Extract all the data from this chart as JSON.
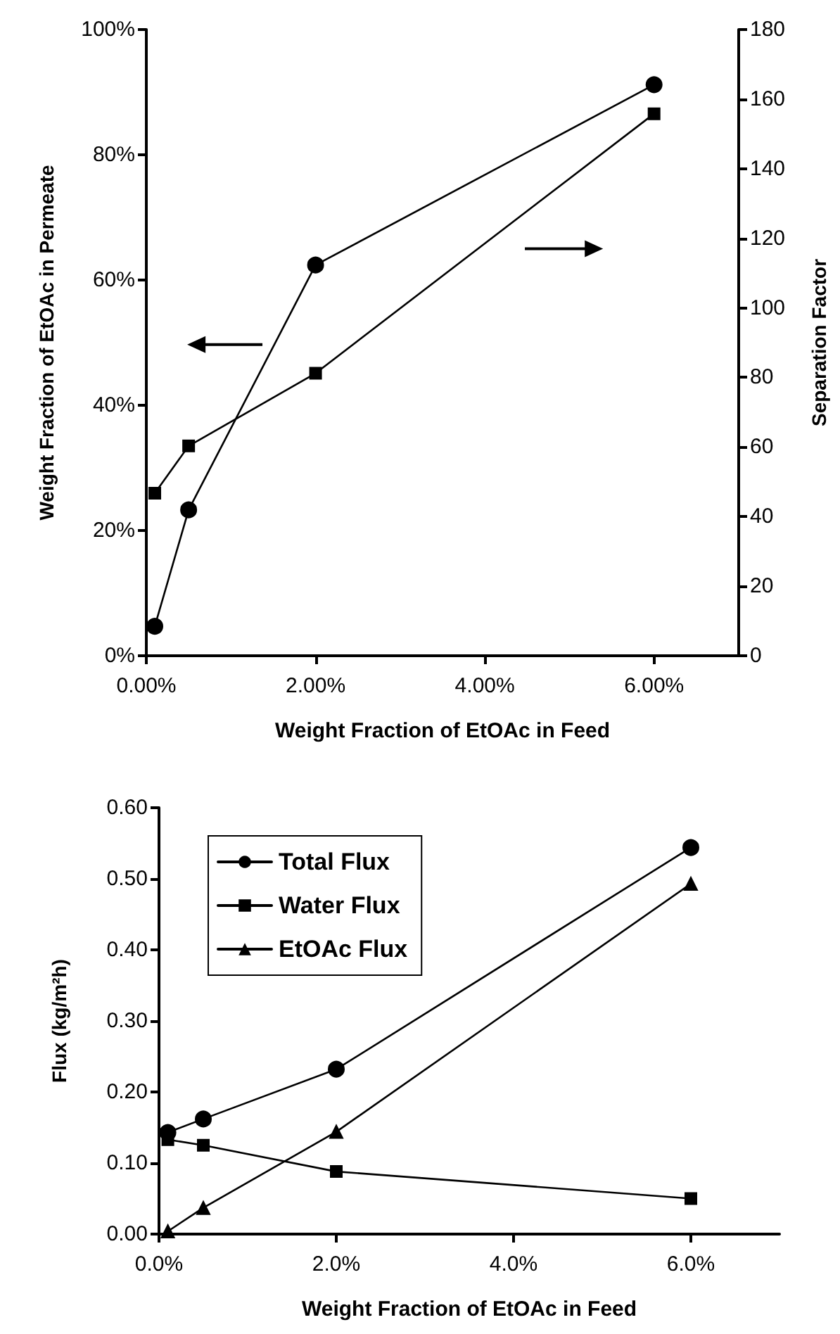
{
  "chart_data": [
    {
      "type": "line",
      "xlabel": "Weight Fraction of EtOAc in Feed",
      "ylabel": "Weight Fraction of EtOAc in Permeate",
      "y2label": "Separation Factor",
      "xlim": [
        0,
        7
      ],
      "xticks": [
        {
          "value": 0,
          "label": "0.00%"
        },
        {
          "value": 2,
          "label": "2.00%"
        },
        {
          "value": 4,
          "label": "4.00%"
        },
        {
          "value": 6,
          "label": "6.00%"
        }
      ],
      "ylim": [
        0,
        100
      ],
      "yticks": [
        {
          "value": 0,
          "label": "0%"
        },
        {
          "value": 20,
          "label": "20%"
        },
        {
          "value": 40,
          "label": "40%"
        },
        {
          "value": 60,
          "label": "60%"
        },
        {
          "value": 80,
          "label": "80%"
        },
        {
          "value": 100,
          "label": "100%"
        }
      ],
      "y2lim": [
        0,
        180
      ],
      "y2ticks": [
        0,
        20,
        40,
        60,
        80,
        100,
        120,
        140,
        160,
        180
      ],
      "x": [
        0.1,
        0.5,
        2,
        6
      ],
      "series": [
        {
          "color": "#000000",
          "marker": "circle",
          "values": [
            4.7,
            23.3,
            62.4,
            91.2
          ]
        },
        {
          "color": "#000000",
          "marker": "square",
          "axis": "y2",
          "values": [
            46.7,
            60.3,
            81.2,
            155.8
          ]
        }
      ],
      "grid": false,
      "legend": false
    },
    {
      "type": "line",
      "xlabel": "Weight Fraction of EtOAc in Feed",
      "ylabel": "Flux (kg/m²h)",
      "xlim": [
        0,
        7
      ],
      "xticks": [
        {
          "value": 0,
          "label": "0.0%"
        },
        {
          "value": 2,
          "label": "2.0%"
        },
        {
          "value": 4,
          "label": "4.0%"
        },
        {
          "value": 6,
          "label": "6.0%"
        }
      ],
      "ylim": [
        0,
        0.6
      ],
      "yticks": [
        {
          "value": 0,
          "label": "0.00"
        },
        {
          "value": 0.1,
          "label": "0.10"
        },
        {
          "value": 0.2,
          "label": "0.20"
        },
        {
          "value": 0.3,
          "label": "0.30"
        },
        {
          "value": 0.4,
          "label": "0.40"
        },
        {
          "value": 0.5,
          "label": "0.50"
        },
        {
          "value": 0.6,
          "label": "0.60"
        }
      ],
      "x": [
        0.1,
        0.5,
        2,
        6
      ],
      "series": [
        {
          "name": "Total Flux",
          "color": "#000000",
          "marker": "circle",
          "values": [
            0.143,
            0.162,
            0.232,
            0.544
          ]
        },
        {
          "name": "Water Flux",
          "color": "#000000",
          "marker": "square",
          "values": [
            0.133,
            0.125,
            0.088,
            0.05
          ]
        },
        {
          "name": "EtOAc Flux",
          "color": "#000000",
          "marker": "triangle",
          "values": [
            0.004,
            0.037,
            0.144,
            0.493
          ]
        }
      ],
      "grid": false,
      "legend": "top left"
    }
  ]
}
